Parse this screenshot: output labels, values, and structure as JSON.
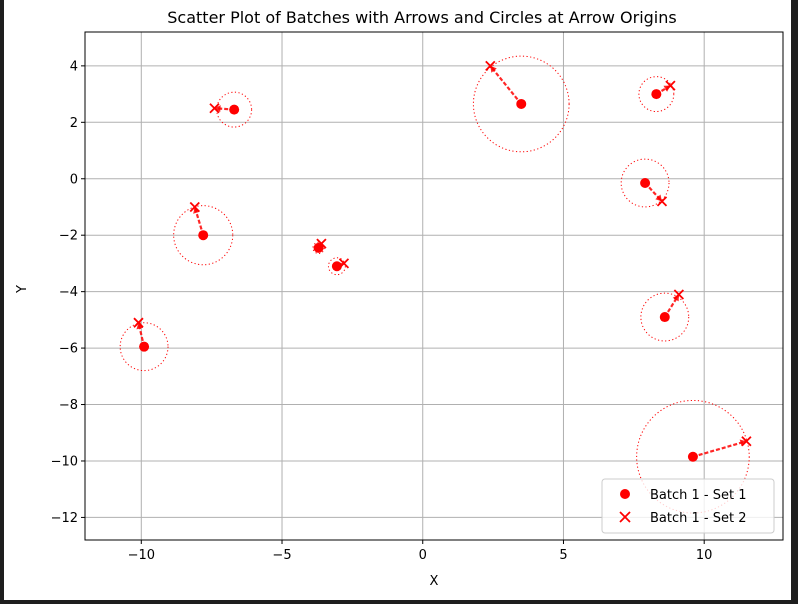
{
  "chart_data": {
    "type": "scatter",
    "title": "Scatter Plot of Batches with Arrows and Circles at Arrow Origins",
    "xlabel": "X",
    "ylabel": "Y",
    "xlim": [
      -12,
      12.8
    ],
    "ylim": [
      -12.8,
      5.2
    ],
    "xticks": [
      -10,
      -5,
      0,
      5,
      10
    ],
    "xtick_labels": [
      "−10",
      "−5",
      "0",
      "5",
      "10"
    ],
    "yticks": [
      4,
      2,
      0,
      -2,
      -4,
      -6,
      -8,
      -10,
      -12
    ],
    "ytick_labels": [
      "4",
      "2",
      "0",
      "−2",
      "−4",
      "−6",
      "−8",
      "−10",
      "−12"
    ],
    "grid": true,
    "legend_position": "lower-right",
    "color": "#ff0000",
    "series": [
      {
        "name": "Batch 1 - Set 1",
        "marker": "circle",
        "points": [
          [
            -6.7,
            2.45
          ],
          [
            3.5,
            2.65
          ],
          [
            8.3,
            3.0
          ],
          [
            7.9,
            -0.15
          ],
          [
            -7.8,
            -2.0
          ],
          [
            -3.7,
            -2.45
          ],
          [
            -3.05,
            -3.1
          ],
          [
            8.6,
            -4.9
          ],
          [
            -9.9,
            -5.95
          ],
          [
            9.6,
            -9.85
          ]
        ]
      },
      {
        "name": "Batch 1 - Set 2",
        "marker": "x",
        "points": [
          [
            -7.4,
            2.5
          ],
          [
            2.4,
            4.0
          ],
          [
            8.8,
            3.3
          ],
          [
            8.5,
            -0.8
          ],
          [
            -8.1,
            -1.0
          ],
          [
            -3.6,
            -2.3
          ],
          [
            -2.8,
            -3.0
          ],
          [
            9.1,
            -4.1
          ],
          [
            -10.1,
            -5.1
          ],
          [
            11.5,
            -9.3
          ]
        ]
      }
    ],
    "circle_radii": [
      0.62,
      1.7,
      0.62,
      0.85,
      1.05,
      0.2,
      0.3,
      0.85,
      0.85,
      2.0
    ]
  }
}
